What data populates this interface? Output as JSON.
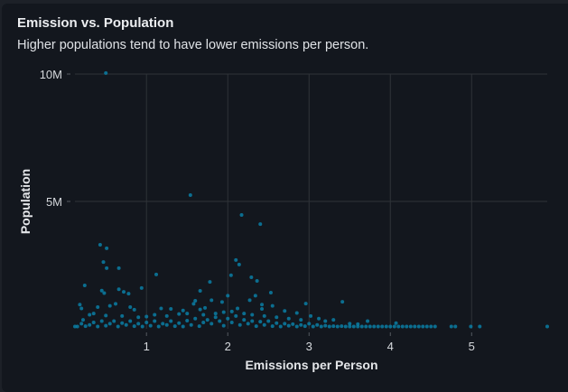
{
  "chart_data": {
    "type": "scatter",
    "title": "Emission vs. Population",
    "subtitle": "Higher populations tend to have lower emissions per person.",
    "xlabel": "Emissions per Person",
    "ylabel": "Population",
    "xlim": [
      0.12,
      5.93
    ],
    "ylim": [
      0,
      10000000
    ],
    "x_ticks": [
      {
        "v": 1,
        "label": "1"
      },
      {
        "v": 2,
        "label": "2"
      },
      {
        "v": 3,
        "label": "3"
      },
      {
        "v": 4,
        "label": "4"
      },
      {
        "v": 5,
        "label": "5"
      }
    ],
    "y_ticks": [
      {
        "v": 5000000,
        "label": "5M"
      },
      {
        "v": 10000000,
        "label": "10M"
      }
    ],
    "grid": true,
    "color": "#0a7ea4",
    "points": [
      [
        0.5,
        10.04
      ],
      [
        1.54,
        5.25
      ],
      [
        2.17,
        4.47
      ],
      [
        2.4,
        4.11
      ],
      [
        0.43,
        3.3
      ],
      [
        0.51,
        3.16
      ],
      [
        0.47,
        2.62
      ],
      [
        0.51,
        2.38
      ],
      [
        0.66,
        2.38
      ],
      [
        2.1,
        2.7
      ],
      [
        2.14,
        2.52
      ],
      [
        2.04,
        2.1
      ],
      [
        1.12,
        2.13
      ],
      [
        0.24,
        1.7
      ],
      [
        1.78,
        1.84
      ],
      [
        2.29,
        2.02
      ],
      [
        2.36,
        1.88
      ],
      [
        0.94,
        1.6
      ],
      [
        2.53,
        1.42
      ],
      [
        3.41,
        1.06
      ],
      [
        1.66,
        1.49
      ],
      [
        2.96,
        0.99
      ],
      [
        0.66,
        1.55
      ],
      [
        0.72,
        1.45
      ],
      [
        0.78,
        1.38
      ],
      [
        0.45,
        1.5
      ],
      [
        0.48,
        1.4
      ],
      [
        2.0,
        1.3
      ],
      [
        2.34,
        1.3
      ],
      [
        1.6,
        1.1
      ],
      [
        1.58,
        0.98
      ],
      [
        1.8,
        1.12
      ],
      [
        1.93,
        1.05
      ],
      [
        2.42,
        0.95
      ],
      [
        2.27,
        1.12
      ],
      [
        2.55,
        0.9
      ],
      [
        0.18,
        0.95
      ],
      [
        0.2,
        0.8
      ],
      [
        0.4,
        0.85
      ],
      [
        0.55,
        0.9
      ],
      [
        0.62,
        0.98
      ],
      [
        0.8,
        0.85
      ],
      [
        0.85,
        0.75
      ],
      [
        1.18,
        0.8
      ],
      [
        1.3,
        0.78
      ],
      [
        1.45,
        0.72
      ],
      [
        1.66,
        0.76
      ],
      [
        1.72,
        0.82
      ],
      [
        2.12,
        0.8
      ],
      [
        2.42,
        0.78
      ],
      [
        2.7,
        0.7
      ],
      [
        2.85,
        0.62
      ],
      [
        3.02,
        0.5
      ],
      [
        3.12,
        0.4
      ],
      [
        3.3,
        0.35
      ],
      [
        3.72,
        0.3
      ],
      [
        4.07,
        0.22
      ],
      [
        0.3,
        0.55
      ],
      [
        0.35,
        0.6
      ],
      [
        0.5,
        0.52
      ],
      [
        0.7,
        0.5
      ],
      [
        0.9,
        0.45
      ],
      [
        1.0,
        0.48
      ],
      [
        1.1,
        0.55
      ],
      [
        1.25,
        0.5
      ],
      [
        1.4,
        0.58
      ],
      [
        1.5,
        0.6
      ],
      [
        1.7,
        0.55
      ],
      [
        1.85,
        0.6
      ],
      [
        1.95,
        0.65
      ],
      [
        2.05,
        0.68
      ],
      [
        2.2,
        0.6
      ],
      [
        2.3,
        0.55
      ],
      [
        2.45,
        0.5
      ],
      [
        2.6,
        0.45
      ],
      [
        2.75,
        0.4
      ],
      [
        2.9,
        0.35
      ],
      [
        3.2,
        0.3
      ],
      [
        3.5,
        0.2
      ],
      [
        3.6,
        0.18
      ],
      [
        0.15,
        0.05
      ],
      [
        0.2,
        0.2
      ],
      [
        0.22,
        0.35
      ],
      [
        0.25,
        0.1
      ],
      [
        0.3,
        0.15
      ],
      [
        0.35,
        0.25
      ],
      [
        0.4,
        0.05
      ],
      [
        0.45,
        0.3
      ],
      [
        0.5,
        0.12
      ],
      [
        0.55,
        0.2
      ],
      [
        0.6,
        0.3
      ],
      [
        0.65,
        0.08
      ],
      [
        0.7,
        0.22
      ],
      [
        0.75,
        0.15
      ],
      [
        0.8,
        0.3
      ],
      [
        0.85,
        0.1
      ],
      [
        0.9,
        0.2
      ],
      [
        0.95,
        0.05
      ],
      [
        1.0,
        0.25
      ],
      [
        1.05,
        0.12
      ],
      [
        1.1,
        0.3
      ],
      [
        1.15,
        0.08
      ],
      [
        1.2,
        0.2
      ],
      [
        1.25,
        0.15
      ],
      [
        1.3,
        0.3
      ],
      [
        1.35,
        0.1
      ],
      [
        1.4,
        0.22
      ],
      [
        1.45,
        0.05
      ],
      [
        1.5,
        0.32
      ],
      [
        1.55,
        0.15
      ],
      [
        1.6,
        0.4
      ],
      [
        1.65,
        0.1
      ],
      [
        1.7,
        0.25
      ],
      [
        1.75,
        0.35
      ],
      [
        1.8,
        0.2
      ],
      [
        1.85,
        0.45
      ],
      [
        1.9,
        0.3
      ],
      [
        1.95,
        0.12
      ],
      [
        2.0,
        0.4
      ],
      [
        2.05,
        0.25
      ],
      [
        2.1,
        0.5
      ],
      [
        2.15,
        0.15
      ],
      [
        2.2,
        0.35
      ],
      [
        2.25,
        0.2
      ],
      [
        2.3,
        0.3
      ],
      [
        2.35,
        0.1
      ],
      [
        2.4,
        0.28
      ],
      [
        2.45,
        0.15
      ],
      [
        2.5,
        0.3
      ],
      [
        2.55,
        0.1
      ],
      [
        2.6,
        0.22
      ],
      [
        2.65,
        0.08
      ],
      [
        2.7,
        0.2
      ],
      [
        2.75,
        0.12
      ],
      [
        2.8,
        0.18
      ],
      [
        2.85,
        0.06
      ],
      [
        2.9,
        0.15
      ],
      [
        2.95,
        0.1
      ],
      [
        3.0,
        0.2
      ],
      [
        3.05,
        0.05
      ],
      [
        3.1,
        0.15
      ],
      [
        3.15,
        0.08
      ],
      [
        3.2,
        0.12
      ],
      [
        3.25,
        0.05
      ],
      [
        3.3,
        0.1
      ],
      [
        3.35,
        0.04
      ],
      [
        3.4,
        0.1
      ],
      [
        3.45,
        0.06
      ],
      [
        3.5,
        0.08
      ],
      [
        3.55,
        0.03
      ],
      [
        3.6,
        0.07
      ],
      [
        3.65,
        0.04
      ],
      [
        3.7,
        0.06
      ],
      [
        3.75,
        0.03
      ],
      [
        3.8,
        0.05
      ],
      [
        3.85,
        0.04
      ],
      [
        3.9,
        0.06
      ],
      [
        3.95,
        0.03
      ],
      [
        4.0,
        0.05
      ],
      [
        4.05,
        0.03
      ],
      [
        4.1,
        0.04
      ],
      [
        4.15,
        0.03
      ],
      [
        4.2,
        0.04
      ],
      [
        4.25,
        0.02
      ],
      [
        4.3,
        0.04
      ],
      [
        4.35,
        0.02
      ],
      [
        4.4,
        0.03
      ],
      [
        4.45,
        0.02
      ],
      [
        4.5,
        0.04
      ],
      [
        4.55,
        0.03
      ],
      [
        4.75,
        0.02
      ],
      [
        4.8,
        0.02
      ],
      [
        4.99,
        0.02
      ],
      [
        5.1,
        0.02
      ],
      [
        5.93,
        0.02
      ],
      [
        0.12,
        0.02
      ]
    ]
  }
}
